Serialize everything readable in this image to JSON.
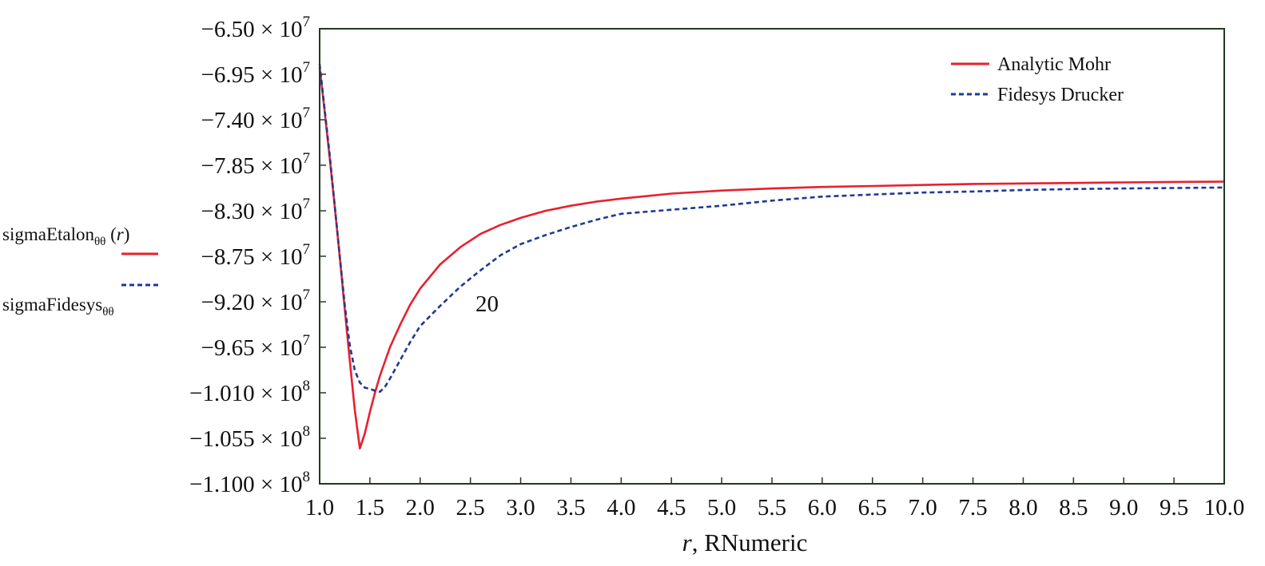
{
  "chart_data": {
    "type": "line",
    "xlabel_italic": "r",
    "xlabel_rest": ", RNumeric",
    "xlim": [
      1.0,
      10.0
    ],
    "ylim": [
      -110000000,
      -65000000
    ],
    "x_ticks": [
      1.0,
      1.5,
      2.0,
      2.5,
      3.0,
      3.5,
      4.0,
      4.5,
      5.0,
      5.5,
      6.0,
      6.5,
      7.0,
      7.5,
      8.0,
      8.5,
      9.0,
      9.5,
      10.0
    ],
    "x_tick_labels": [
      "1.0",
      "1.5",
      "2.0",
      "2.5",
      "3.0",
      "3.5",
      "4.0",
      "4.5",
      "5.0",
      "5.5",
      "6.0",
      "6.5",
      "7.0",
      "7.5",
      "8.0",
      "8.5",
      "9.0",
      "9.5",
      "10.0"
    ],
    "y_ticks": [
      -65000000,
      -69500000,
      -74000000,
      -78500000,
      -83000000,
      -87500000,
      -92000000,
      -96500000,
      -101000000,
      -105500000,
      -110000000
    ],
    "y_tick_labels": [
      {
        "mantissa": "−6.50 × 10",
        "exp": "7"
      },
      {
        "mantissa": "−6.95 × 10",
        "exp": "7"
      },
      {
        "mantissa": "−7.40 × 10",
        "exp": "7"
      },
      {
        "mantissa": "−7.85 × 10",
        "exp": "7"
      },
      {
        "mantissa": "−8.30 × 10",
        "exp": "7"
      },
      {
        "mantissa": "−8.75 × 10",
        "exp": "7"
      },
      {
        "mantissa": "−9.20 × 10",
        "exp": "7"
      },
      {
        "mantissa": "−9.65 × 10",
        "exp": "7"
      },
      {
        "mantissa": "−1.010 × 10",
        "exp": "8"
      },
      {
        "mantissa": "−1.055 × 10",
        "exp": "8"
      },
      {
        "mantissa": "−1.100 × 10",
        "exp": "8"
      }
    ],
    "grid": false,
    "legend_position": "top-right",
    "series": [
      {
        "name": "Analytic Mohr",
        "color": "#e8202e",
        "style": "solid",
        "x": [
          1.0,
          1.05,
          1.1,
          1.15,
          1.2,
          1.25,
          1.3,
          1.35,
          1.4,
          1.45,
          1.5,
          1.55,
          1.6,
          1.7,
          1.8,
          1.9,
          2.0,
          2.2,
          2.4,
          2.6,
          2.8,
          3.0,
          3.25,
          3.5,
          3.75,
          4.0,
          4.5,
          5.0,
          5.5,
          6.0,
          6.5,
          7.0,
          7.5,
          8.0,
          8.5,
          9.0,
          9.5,
          10.0
        ],
        "y": [
          -68800000,
          -73200000,
          -77800000,
          -82600000,
          -87600000,
          -92700000,
          -97800000,
          -102700000,
          -106500000,
          -105000000,
          -102900000,
          -101000000,
          -99300000,
          -96500000,
          -94300000,
          -92300000,
          -90700000,
          -88300000,
          -86600000,
          -85300000,
          -84400000,
          -83700000,
          -83000000,
          -82500000,
          -82100000,
          -81800000,
          -81300000,
          -81000000,
          -80800000,
          -80650000,
          -80550000,
          -80450000,
          -80350000,
          -80300000,
          -80250000,
          -80200000,
          -80150000,
          -80120000
        ]
      },
      {
        "name": "Fidesys Drucker",
        "color": "#1f3a93",
        "style": "dashed",
        "x": [
          1.0,
          1.05,
          1.1,
          1.15,
          1.2,
          1.25,
          1.3,
          1.35,
          1.4,
          1.45,
          1.5,
          1.55,
          1.6,
          1.65,
          1.7,
          1.8,
          1.9,
          2.0,
          2.2,
          2.4,
          2.6,
          2.8,
          3.0,
          3.25,
          3.5,
          3.75,
          4.0,
          4.5,
          5.0,
          5.5,
          6.0,
          6.5,
          7.0,
          7.5,
          8.0,
          8.5,
          9.0,
          9.5,
          10.0
        ],
        "y": [
          -68500000,
          -73000000,
          -77500000,
          -82500000,
          -87500000,
          -92300000,
          -96300000,
          -98800000,
          -100000000,
          -100500000,
          -100600000,
          -100800000,
          -100900000,
          -100400000,
          -99600000,
          -97800000,
          -96000000,
          -94400000,
          -92400000,
          -90500000,
          -88900000,
          -87400000,
          -86300000,
          -85400000,
          -84600000,
          -83900000,
          -83300000,
          -82900000,
          -82500000,
          -82000000,
          -81600000,
          -81400000,
          -81200000,
          -81100000,
          -80950000,
          -80850000,
          -80800000,
          -80750000,
          -80700000
        ]
      }
    ],
    "annotations": [
      {
        "text": "20",
        "x": 2.55,
        "y": -92000000
      }
    ],
    "side_labels": [
      {
        "main": "sigmaEtalon",
        "sub": "θθ",
        "suffix_pre": " (",
        "suffix_italic": "r",
        "suffix_post": ")"
      },
      {
        "main": "sigmaFidesys",
        "sub": "θθ",
        "suffix_pre": "",
        "suffix_italic": "",
        "suffix_post": ""
      }
    ]
  }
}
